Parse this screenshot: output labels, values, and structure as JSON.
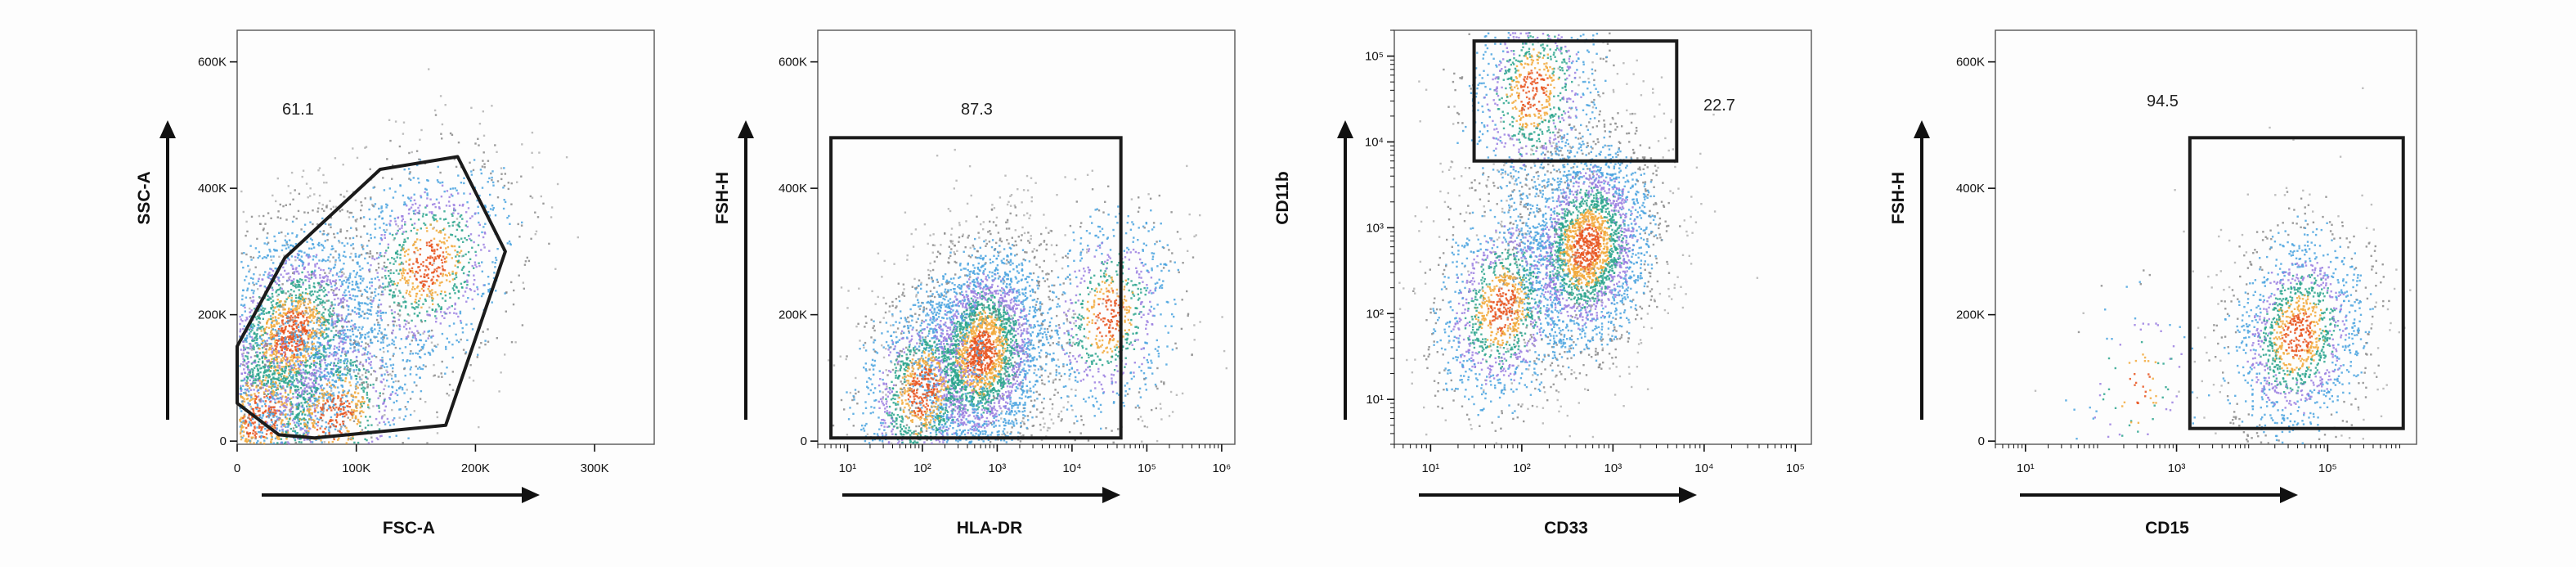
{
  "chart_data": [
    {
      "type": "scatter",
      "xlabel": "FSC-A",
      "ylabel": "SSC-A",
      "xscale": "linear",
      "yscale": "linear",
      "xlim": [
        0,
        350000
      ],
      "ylim": [
        -5000,
        650000
      ],
      "x_ticks": [
        0,
        100000,
        200000,
        300000
      ],
      "x_tick_labels": [
        "0",
        "100K",
        "200K",
        "300K"
      ],
      "y_ticks": [
        0,
        200000,
        400000,
        600000
      ],
      "y_tick_labels": [
        "0",
        "200K",
        "400K",
        "600K"
      ],
      "gate": {
        "shape": "polygon",
        "label": "61.1",
        "vertices": [
          [
            0,
            150000
          ],
          [
            40000,
            290000
          ],
          [
            120000,
            430000
          ],
          [
            185000,
            450000
          ],
          [
            225000,
            300000
          ],
          [
            175000,
            25000
          ],
          [
            65000,
            5000
          ],
          [
            35000,
            10000
          ],
          [
            0,
            60000
          ]
        ]
      },
      "populations": [
        {
          "x_center": 45000,
          "y_center": 170000,
          "count": 2600
        },
        {
          "x_center": 20000,
          "y_center": 40000,
          "count": 1600
        },
        {
          "x_center": 80000,
          "y_center": 40000,
          "count": 1200
        },
        {
          "x_center": 160000,
          "y_center": 280000,
          "count": 1200
        }
      ]
    },
    {
      "type": "scatter",
      "xlabel": "HLA-DR",
      "ylabel": "FSH-H",
      "xscale": "log",
      "yscale": "linear",
      "xlim": [
        4,
        1500000
      ],
      "ylim": [
        -5000,
        650000
      ],
      "x_ticks": [
        10,
        100,
        1000,
        10000,
        100000,
        1000000
      ],
      "x_tick_labels": [
        "10¹",
        "10²",
        "10³",
        "10⁴",
        "10⁵",
        "10⁶"
      ],
      "y_ticks": [
        0,
        200000,
        400000,
        600000
      ],
      "y_tick_labels": [
        "0",
        "200K",
        "400K",
        "600K"
      ],
      "gate": {
        "shape": "rectangle",
        "label": "87.3",
        "x_range": [
          6,
          45000
        ],
        "y_range": [
          5000,
          480000
        ]
      },
      "populations": [
        {
          "x_center": 600,
          "y_center": 140000,
          "count": 3500
        },
        {
          "x_center": 100,
          "y_center": 80000,
          "count": 1500
        },
        {
          "x_center": 30000,
          "y_center": 200000,
          "count": 900
        }
      ]
    },
    {
      "type": "scatter",
      "xlabel": "CD33",
      "ylabel": "CD11b",
      "xscale": "log",
      "yscale": "log",
      "xlim": [
        4,
        150000
      ],
      "ylim": [
        3,
        200000
      ],
      "x_ticks": [
        10,
        100,
        1000,
        10000,
        100000
      ],
      "x_tick_labels": [
        "10¹",
        "10²",
        "10³",
        "10⁴",
        "10⁵"
      ],
      "y_ticks": [
        10,
        100,
        1000,
        10000,
        100000
      ],
      "y_tick_labels": [
        "10¹",
        "10²",
        "10³",
        "10⁴",
        "10⁵"
      ],
      "gate": {
        "shape": "rectangle",
        "label": "22.7",
        "x_range": [
          30,
          5000
        ],
        "y_range": [
          6000,
          150000
        ]
      },
      "populations": [
        {
          "x_center": 130,
          "y_center": 40000,
          "count": 1100
        },
        {
          "x_center": 500,
          "y_center": 600,
          "count": 3000
        },
        {
          "x_center": 60,
          "y_center": 120,
          "count": 1400
        }
      ]
    },
    {
      "type": "scatter",
      "xlabel": "CD15",
      "ylabel": "FSH-H",
      "xscale": "log",
      "yscale": "linear",
      "xlim": [
        4,
        1500000
      ],
      "ylim": [
        -5000,
        650000
      ],
      "x_ticks": [
        10,
        1000,
        100000
      ],
      "x_tick_labels": [
        "10¹",
        "10³",
        "10⁵"
      ],
      "y_ticks": [
        0,
        200000,
        400000,
        600000
      ],
      "y_tick_labels": [
        "0",
        "200K",
        "400K",
        "600K"
      ],
      "gate": {
        "shape": "rectangle",
        "label": "94.5",
        "x_range": [
          1500,
          1000000
        ],
        "y_range": [
          20000,
          480000
        ]
      },
      "populations": [
        {
          "x_center": 40000,
          "y_center": 170000,
          "count": 1600
        },
        {
          "x_center": 300,
          "y_center": 90000,
          "count": 120
        }
      ]
    }
  ],
  "colors": {
    "sparse": "#8a8a8a",
    "low": "#4aa3df",
    "mid": "#9b7fe0",
    "med": "#2ca58d",
    "high": "#f2a93b",
    "peak": "#e8541e",
    "gate": "#1b1b1b",
    "axis": "#111111"
  }
}
